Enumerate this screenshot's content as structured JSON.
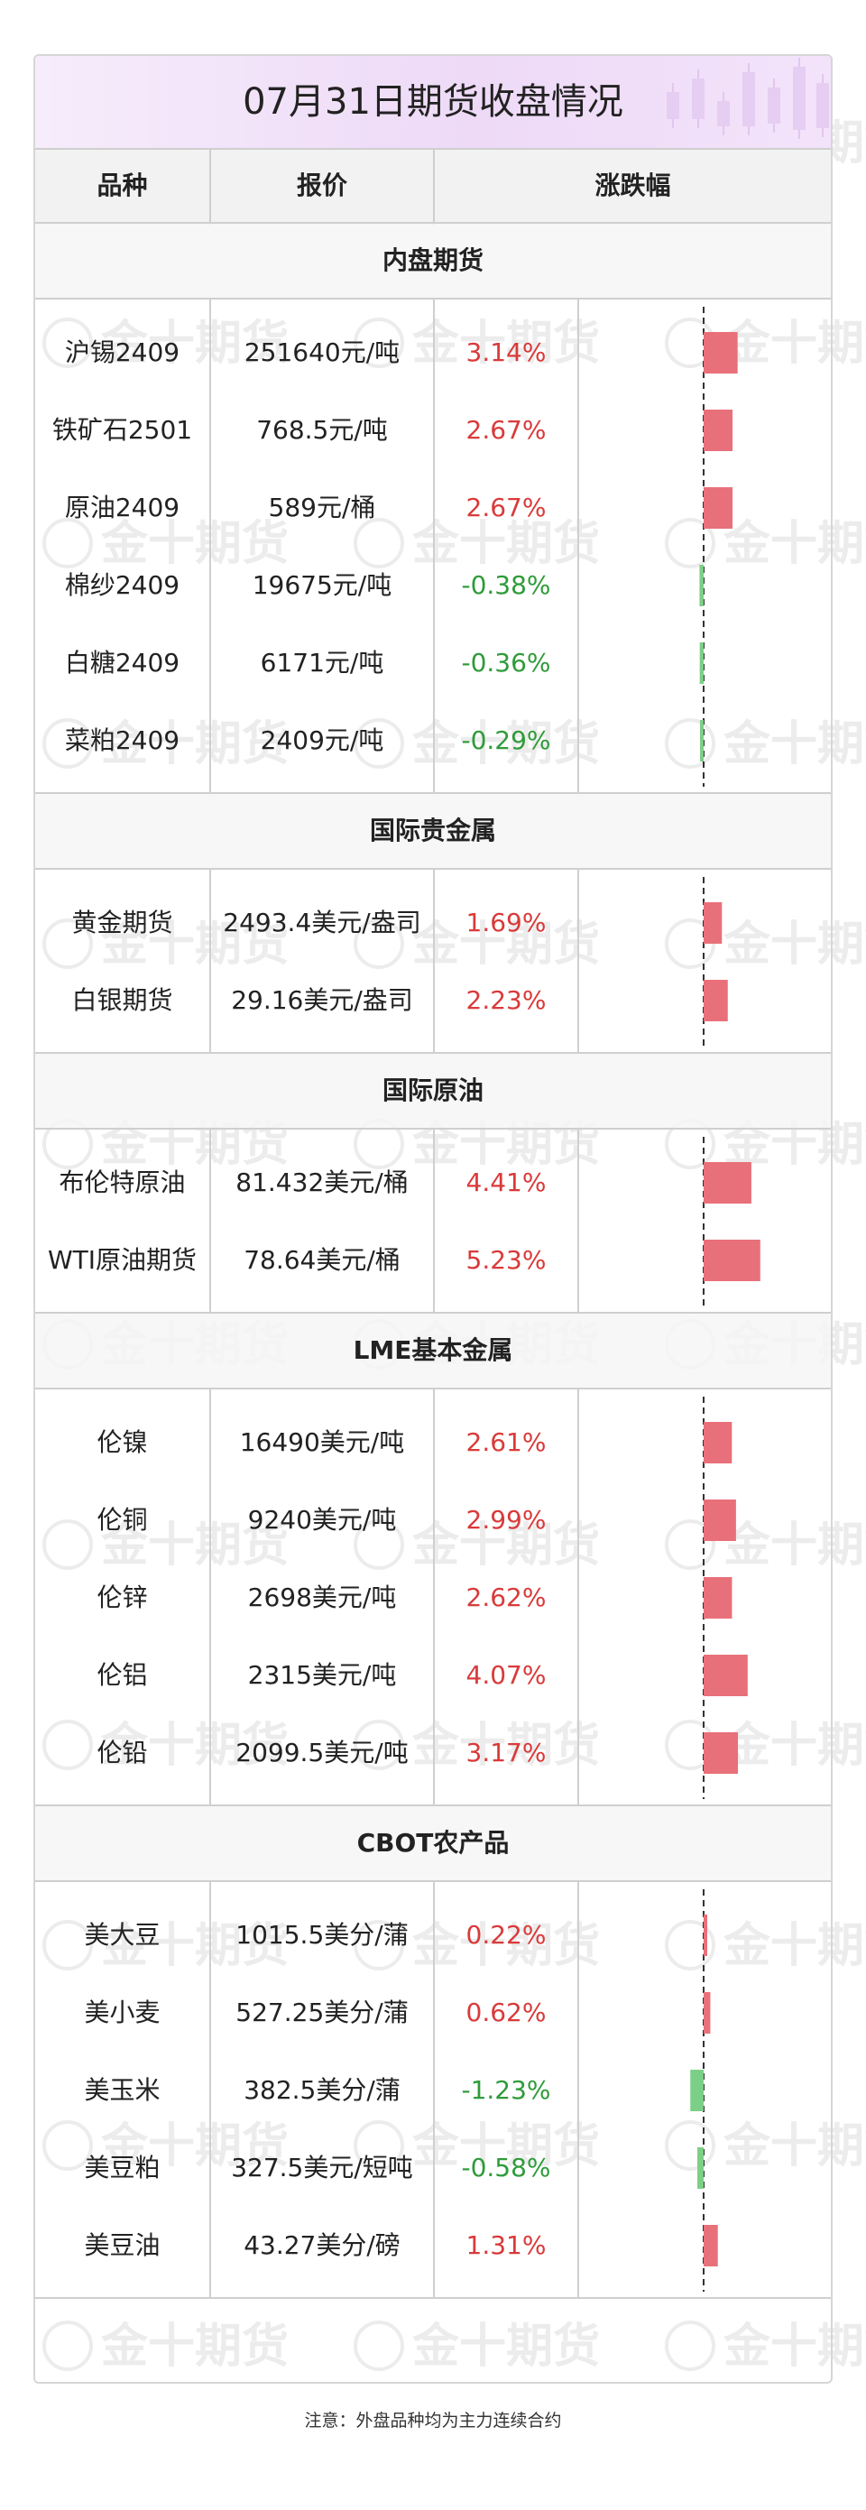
{
  "title": "07月31日期货收盘情况",
  "watermark": "金十期货",
  "columns": [
    "品种",
    "报价",
    "涨跌幅"
  ],
  "footnote": "注意：外盘品种均为主力连续合约",
  "colors": {
    "up": "#d93a3a",
    "down": "#2f9b3a",
    "bar_up": "#e8707a",
    "bar_down": "#7ccf86"
  },
  "chart_data": {
    "type": "bar",
    "orientation": "horizontal",
    "unit": "%",
    "sections": [
      {
        "name": "内盘期货",
        "rows": [
          {
            "name": "沪锡2409",
            "price": "251640元/吨",
            "pct_label": "3.14%",
            "value": 3.14
          },
          {
            "name": "铁矿石2501",
            "price": "768.5元/吨",
            "pct_label": "2.67%",
            "value": 2.67
          },
          {
            "name": "原油2409",
            "price": "589元/桶",
            "pct_label": "2.67%",
            "value": 2.67
          },
          {
            "name": "棉纱2409",
            "price": "19675元/吨",
            "pct_label": "-0.38%",
            "value": -0.38
          },
          {
            "name": "白糖2409",
            "price": "6171元/吨",
            "pct_label": "-0.36%",
            "value": -0.36
          },
          {
            "name": "菜粕2409",
            "price": "2409元/吨",
            "pct_label": "-0.29%",
            "value": -0.29
          }
        ]
      },
      {
        "name": "国际贵金属",
        "rows": [
          {
            "name": "黄金期货",
            "price": "2493.4美元/盎司",
            "pct_label": "1.69%",
            "value": 1.69
          },
          {
            "name": "白银期货",
            "price": "29.16美元/盎司",
            "pct_label": "2.23%",
            "value": 2.23
          }
        ]
      },
      {
        "name": "国际原油",
        "rows": [
          {
            "name": "布伦特原油",
            "price": "81.432美元/桶",
            "pct_label": "4.41%",
            "value": 4.41
          },
          {
            "name": "WTI原油期货",
            "price": "78.64美元/桶",
            "pct_label": "5.23%",
            "value": 5.23
          }
        ]
      },
      {
        "name": "LME基本金属",
        "rows": [
          {
            "name": "伦镍",
            "price": "16490美元/吨",
            "pct_label": "2.61%",
            "value": 2.61
          },
          {
            "name": "伦铜",
            "price": "9240美元/吨",
            "pct_label": "2.99%",
            "value": 2.99
          },
          {
            "name": "伦锌",
            "price": "2698美元/吨",
            "pct_label": "2.62%",
            "value": 2.62
          },
          {
            "name": "伦铝",
            "price": "2315美元/吨",
            "pct_label": "4.07%",
            "value": 4.07
          },
          {
            "name": "伦铅",
            "price": "2099.5美元/吨",
            "pct_label": "3.17%",
            "value": 3.17
          }
        ]
      },
      {
        "name": "CBOT农产品",
        "rows": [
          {
            "name": "美大豆",
            "price": "1015.5美分/蒲",
            "pct_label": "0.22%",
            "value": 0.22
          },
          {
            "name": "美小麦",
            "price": "527.25美分/蒲",
            "pct_label": "0.62%",
            "value": 0.62
          },
          {
            "name": "美玉米",
            "price": "382.5美分/蒲",
            "pct_label": "-1.23%",
            "value": -1.23
          },
          {
            "name": "美豆粕",
            "price": "327.5美元/短吨",
            "pct_label": "-0.58%",
            "value": -0.58
          },
          {
            "name": "美豆油",
            "price": "43.27美分/磅",
            "pct_label": "1.31%",
            "value": 1.31
          }
        ]
      }
    ]
  }
}
